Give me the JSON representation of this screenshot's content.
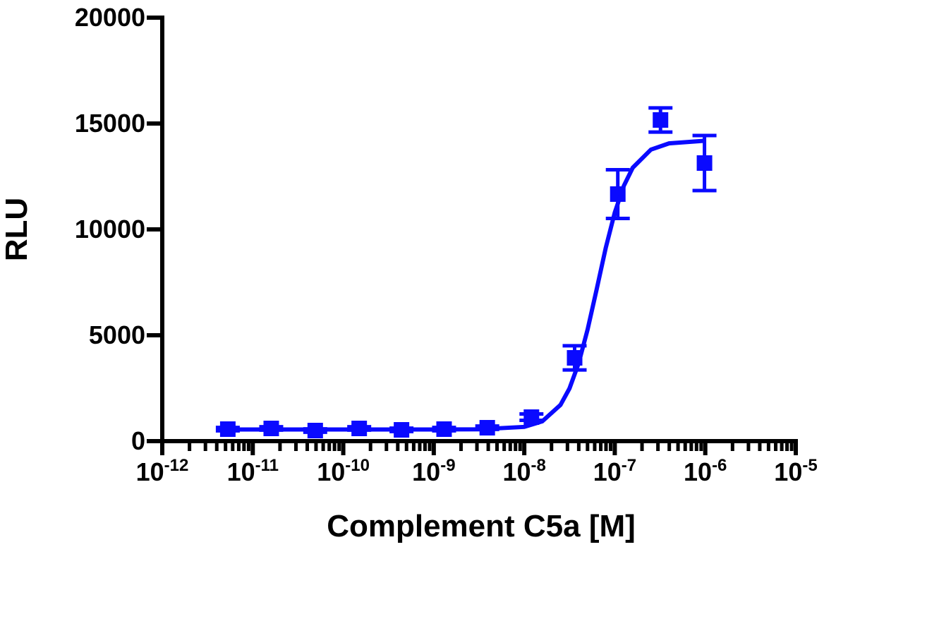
{
  "chart_data": {
    "type": "scatter",
    "x_label": "Complement C5a [M]",
    "y_label": "RLU",
    "log_x": true,
    "xlim": [
      1e-12,
      1e-05
    ],
    "xticks": [
      {
        "value": 1e-12,
        "label": "10",
        "superscript": "-12"
      },
      {
        "value": 1e-11,
        "label": "10",
        "superscript": "-11"
      },
      {
        "value": 1e-10,
        "label": "10",
        "superscript": "-10"
      },
      {
        "value": 1e-09,
        "label": "10",
        "superscript": "-9"
      },
      {
        "value": 1e-08,
        "label": "10",
        "superscript": "-8"
      },
      {
        "value": 1e-07,
        "label": "10",
        "superscript": "-7"
      },
      {
        "value": 1e-06,
        "label": "10",
        "superscript": "-6"
      },
      {
        "value": 1e-05,
        "label": "10",
        "superscript": "-5"
      }
    ],
    "ylim": [
      0,
      20000
    ],
    "yticks": [
      0,
      5000,
      10000,
      15000,
      20000
    ],
    "series": [
      {
        "color": "#0a0aff",
        "x": [
          5.3e-12,
          1.6e-11,
          4.9e-11,
          1.5e-10,
          4.4e-10,
          1.3e-09,
          3.9e-09,
          1.2e-08,
          3.6e-08,
          1.08e-07,
          3.2e-07,
          9.8e-07
        ],
        "values": [
          567,
          600,
          500,
          600,
          533,
          567,
          633,
          1133,
          3933,
          11667,
          15167,
          13133
        ],
        "errors": [
          80,
          80,
          80,
          80,
          80,
          80,
          80,
          150,
          570,
          1150,
          570,
          1300
        ]
      },
      {
        "color": "#0a0aff",
        "fit": true,
        "x": [
          5.25e-12,
          1e-10,
          1e-09,
          3.16e-09,
          1e-08,
          1.58e-08,
          2.51e-08,
          3.16e-08,
          3.98e-08,
          5.01e-08,
          6.31e-08,
          7.94e-08,
          1e-07,
          1.26e-07,
          1.58e-07,
          2.51e-07,
          3.98e-07,
          1e-06
        ],
        "values": [
          550,
          550,
          550,
          557,
          673,
          935,
          1707,
          2489,
          3666,
          5273,
          7174,
          9119,
          10798,
          12059,
          12914,
          13769,
          14062,
          14186
        ]
      }
    ]
  }
}
